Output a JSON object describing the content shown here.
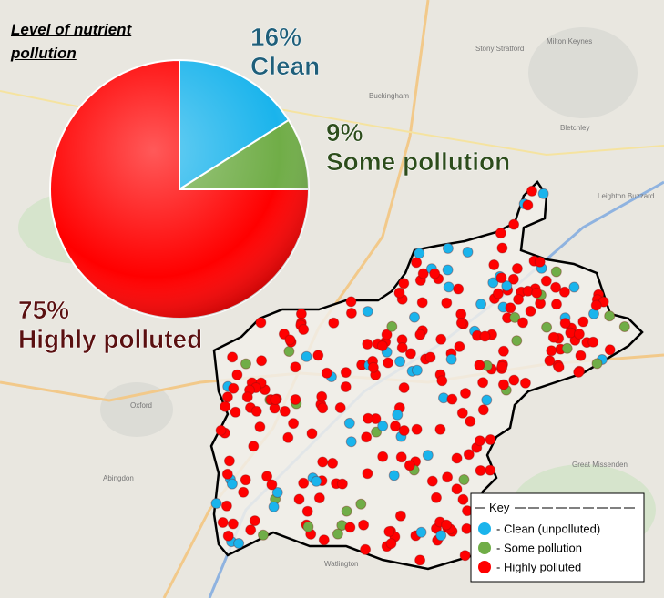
{
  "chart_data": {
    "type": "pie",
    "title": "Level of nutrient pollution",
    "categories": [
      "Clean",
      "Some pollution",
      "Highly polluted"
    ],
    "values": [
      16,
      9,
      75
    ],
    "value_labels": [
      "16%",
      "9%",
      "75%"
    ],
    "colors": [
      "#1ab4ec",
      "#70ad47",
      "#ff0000"
    ]
  },
  "key": {
    "title": "Key",
    "items": [
      "- Clean (unpolluted)",
      "- Some pollution",
      "- Highly polluted"
    ]
  },
  "map": {
    "labels": [
      "Stony Stratford",
      "Milton Keynes",
      "Buckingham",
      "Bletchley",
      "Leighton Buzzard",
      "Oxford",
      "Abingdon",
      "Watlington",
      "Great Missenden"
    ]
  }
}
